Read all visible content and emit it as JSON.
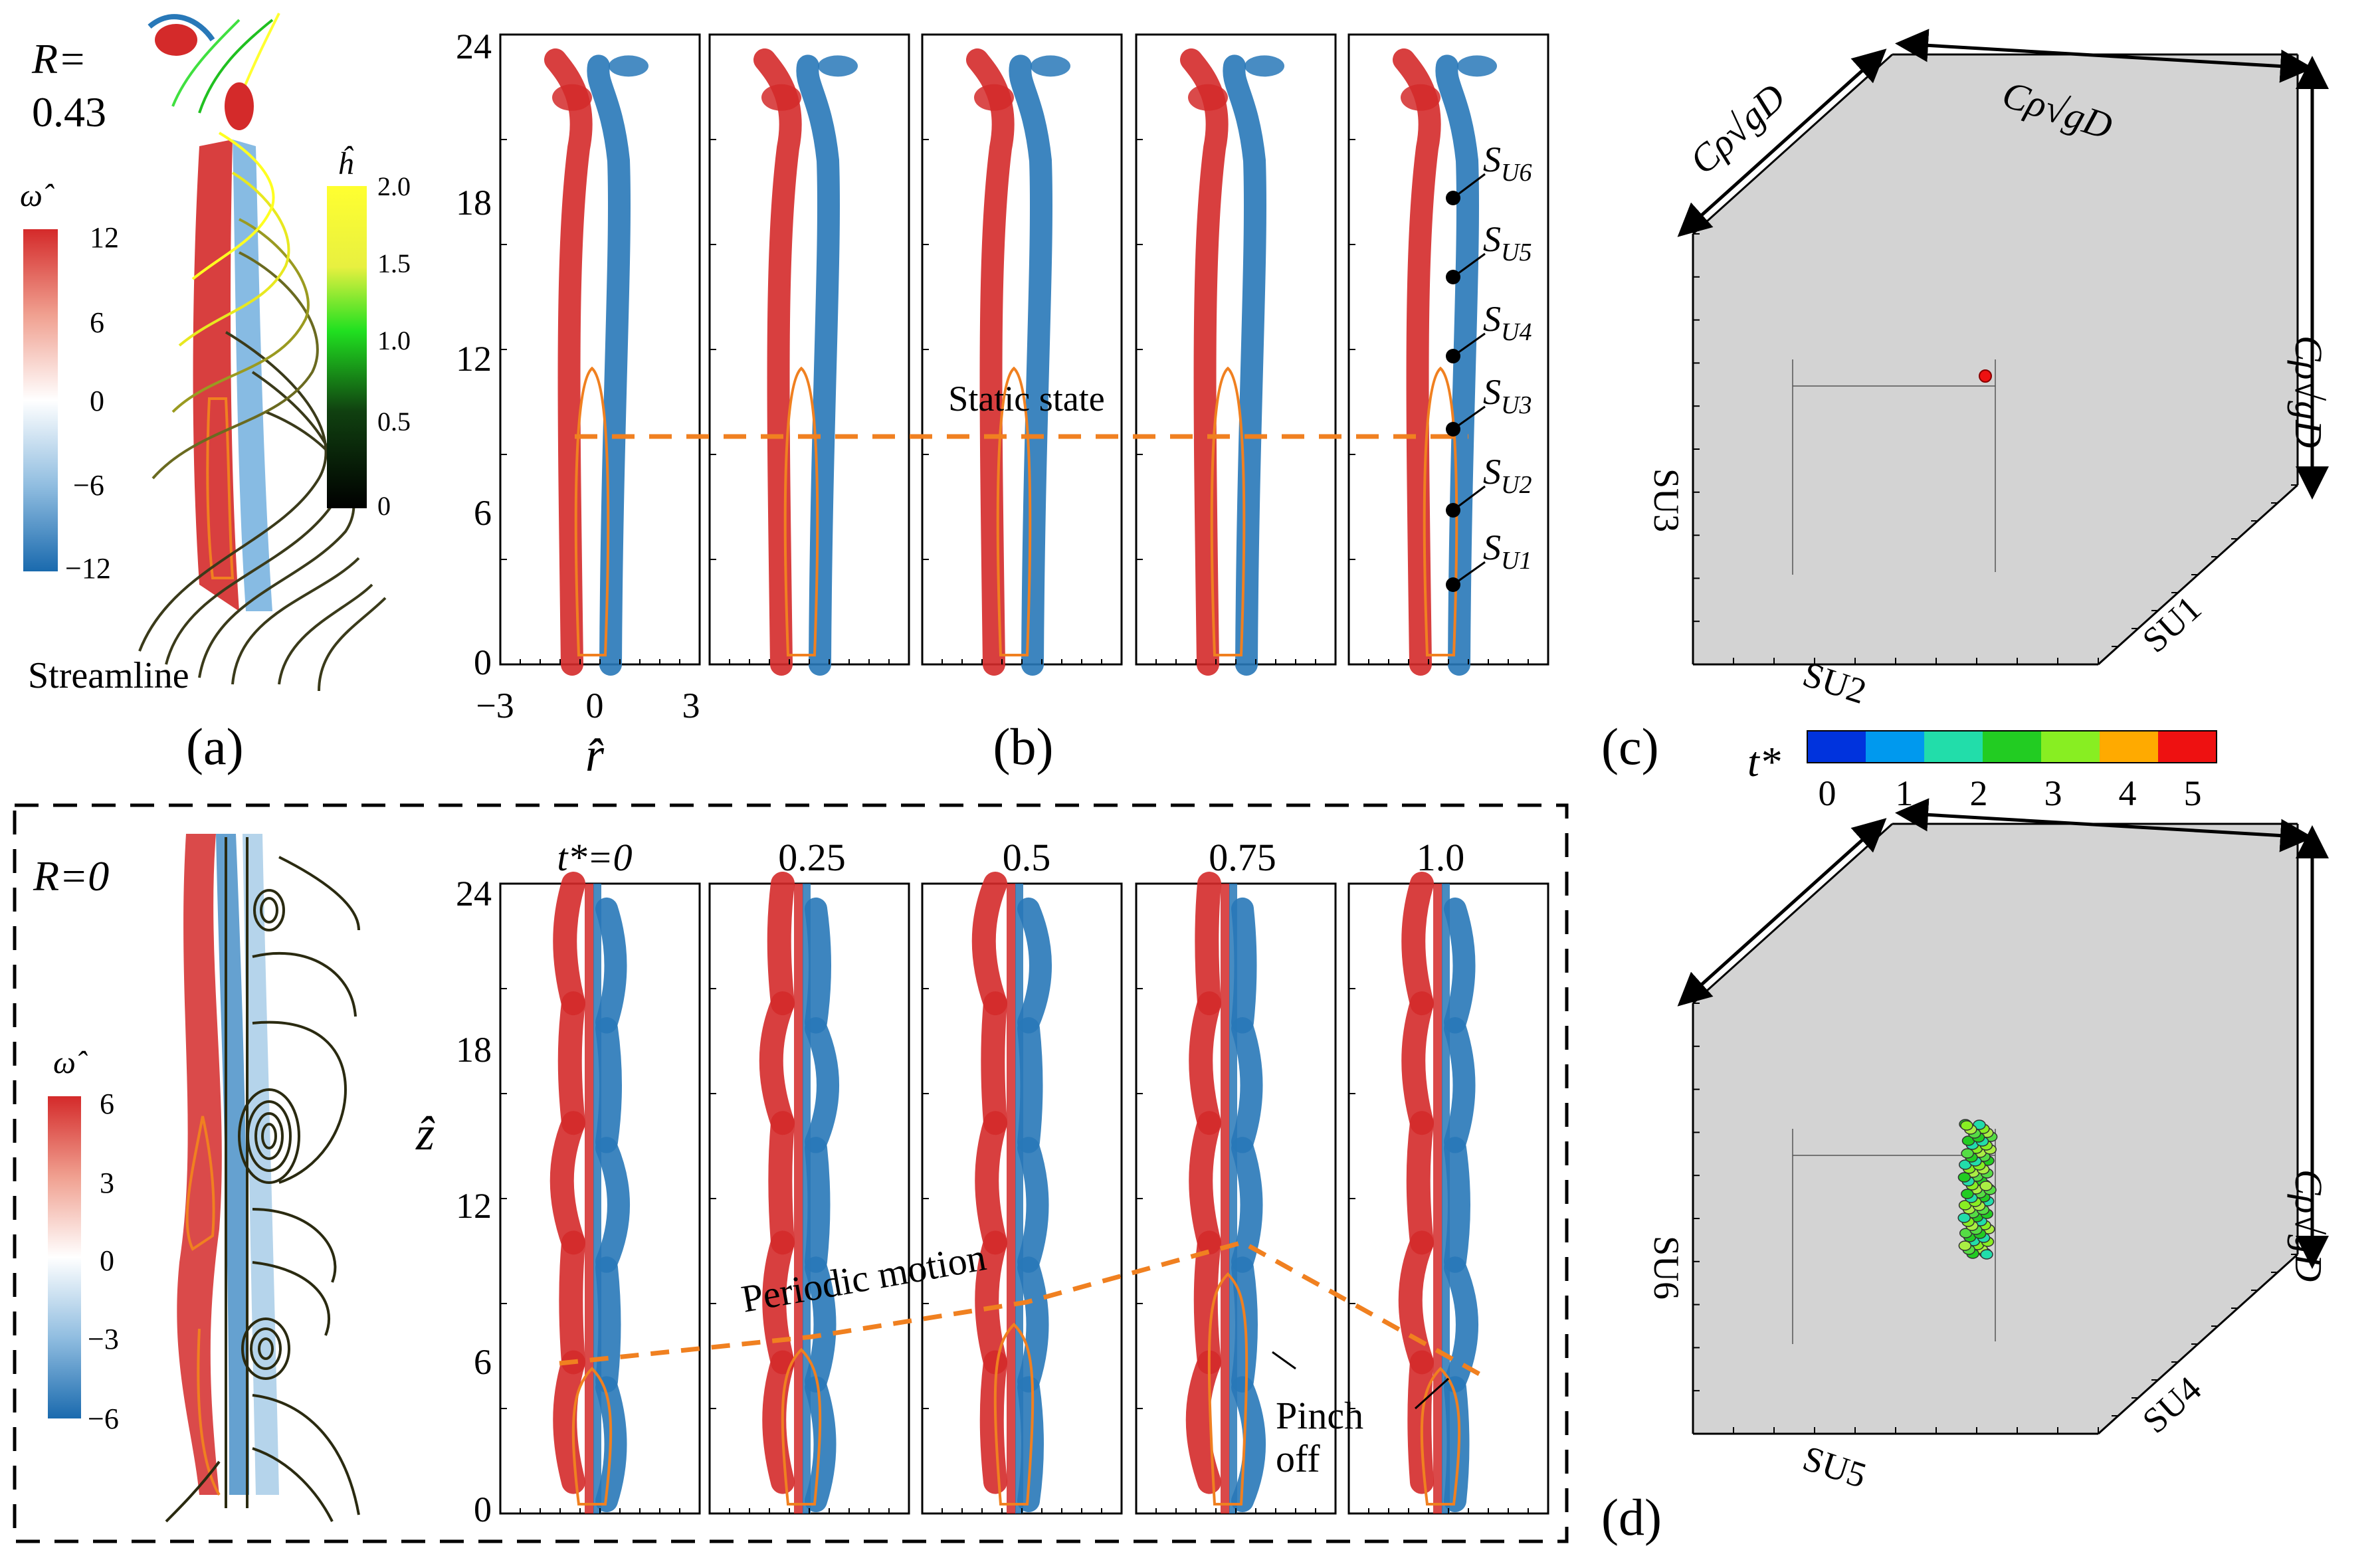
{
  "panel_a": {
    "R_label": "R=",
    "R_value": "0.43",
    "omega_symbol": "ω̂",
    "omega_ticks": [
      "12",
      "6",
      "0",
      "−6",
      "−12"
    ],
    "h_symbol": "ĥ",
    "h_ticks": [
      "2.0",
      "1.5",
      "1.0",
      "0.5",
      "0"
    ],
    "streamline_label": "Streamline",
    "caption": "(a)"
  },
  "panel_b": {
    "z_ticks": [
      "24",
      "18",
      "12",
      "6",
      "0"
    ],
    "r_ticks": [
      "−3",
      "0",
      "3"
    ],
    "r_symbol": "r̂",
    "static_label": "Static state",
    "probe_labels": [
      "S",
      "S",
      "S",
      "S",
      "S",
      "S"
    ],
    "probe_subs": [
      "U6",
      "U5",
      "U4",
      "U3",
      "U2",
      "U1"
    ],
    "caption": "(b)"
  },
  "panel_c": {
    "edge_label": "Cρ√gD",
    "axis_labels": [
      "SU3",
      "SU2",
      "SU1"
    ],
    "caption": "(c)"
  },
  "t_colorbar": {
    "symbol": "t*",
    "ticks": [
      "0",
      "1",
      "2",
      "3",
      "4",
      "5"
    ],
    "colors": [
      "#0033dd",
      "#0099ee",
      "#22ddaa",
      "#22cc22",
      "#88ee22",
      "#ffaa00",
      "#ee1111"
    ]
  },
  "panel_bottom": {
    "R_label": "R=0",
    "omega_symbol": "ω̂",
    "omega_ticks": [
      "6",
      "3",
      "0",
      "−3",
      "−6"
    ],
    "z_symbol": "ẑ",
    "z_ticks": [
      "24",
      "18",
      "12",
      "6",
      "0"
    ],
    "t_labels": [
      "t*=0",
      "0.25",
      "0.5",
      "0.75",
      "1.0"
    ],
    "periodic_label": "Periodic motion",
    "pinch_label_1": "Pinch",
    "pinch_label_2": "off"
  },
  "panel_d": {
    "edge_label": "Cρ√gD",
    "axis_labels": [
      "SU6",
      "SU5",
      "SU4"
    ],
    "caption": "(d)"
  },
  "colors": {
    "red": "#d42a2a",
    "blue": "#2878b8",
    "orange": "#f08020",
    "gray_face": "#d3d3d3"
  }
}
